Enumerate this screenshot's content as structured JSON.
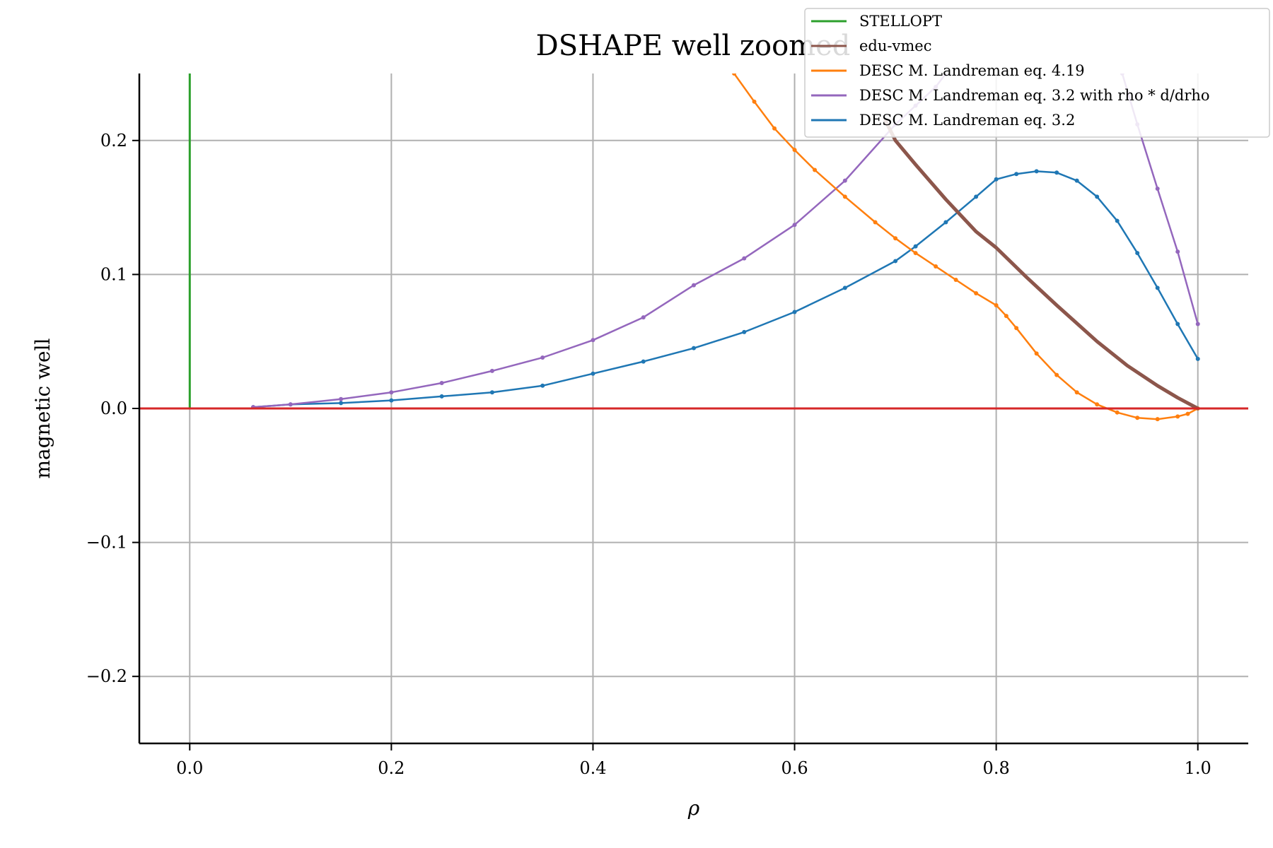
{
  "chart_data": {
    "type": "line",
    "title": "DSHAPE well zoomed",
    "xlabel": "ρ",
    "ylabel": "magnetic well",
    "xlim": [
      -0.05,
      1.05
    ],
    "ylim": [
      -0.25,
      0.25
    ],
    "xticks": [
      0.0,
      0.2,
      0.4,
      0.6,
      0.8,
      1.0
    ],
    "xtick_labels": [
      "0.0",
      "0.2",
      "0.4",
      "0.6",
      "0.8",
      "1.0"
    ],
    "yticks": [
      -0.2,
      -0.1,
      0.0,
      0.1,
      0.2
    ],
    "ytick_labels": [
      "−0.2",
      "−0.1",
      "0.0",
      "0.1",
      "0.2"
    ],
    "grid": true,
    "legend_position": "top-right",
    "reference_line": {
      "y": 0.0,
      "color": "#d62728"
    },
    "series": [
      {
        "name": "STELLOPT",
        "color": "#2ca02c",
        "marker": false,
        "width": 3,
        "x": [
          0.0,
          0.0
        ],
        "y": [
          0.0,
          0.25
        ]
      },
      {
        "name": "edu-vmec",
        "color": "#8c564b",
        "marker": false,
        "width": 5,
        "x": [
          0.69,
          0.7,
          0.72,
          0.75,
          0.78,
          0.8,
          0.83,
          0.86,
          0.9,
          0.93,
          0.96,
          0.98,
          1.0
        ],
        "y": [
          0.215,
          0.2,
          0.182,
          0.156,
          0.132,
          0.12,
          0.098,
          0.077,
          0.05,
          0.032,
          0.017,
          0.008,
          0.0
        ]
      },
      {
        "name": "DESC M. Landreman eq. 4.19",
        "color": "#ff7f0e",
        "marker": true,
        "width": 2.5,
        "x": [
          0.54,
          0.56,
          0.58,
          0.6,
          0.62,
          0.65,
          0.68,
          0.7,
          0.72,
          0.74,
          0.76,
          0.78,
          0.8,
          0.81,
          0.82,
          0.84,
          0.86,
          0.88,
          0.9,
          0.92,
          0.94,
          0.96,
          0.98,
          0.99,
          1.0
        ],
        "y": [
          0.25,
          0.229,
          0.209,
          0.193,
          0.178,
          0.158,
          0.139,
          0.127,
          0.116,
          0.106,
          0.096,
          0.086,
          0.077,
          0.069,
          0.06,
          0.041,
          0.025,
          0.012,
          0.003,
          -0.003,
          -0.007,
          -0.008,
          -0.006,
          -0.004,
          0.0
        ]
      },
      {
        "name": "DESC M. Landreman eq. 3.2 with rho * d/drho",
        "color": "#9467bd",
        "marker": true,
        "width": 2.5,
        "x": [
          0.063,
          0.1,
          0.15,
          0.2,
          0.25,
          0.3,
          0.35,
          0.4,
          0.45,
          0.5,
          0.55,
          0.6,
          0.65,
          0.7,
          0.72,
          0.74,
          0.75
        ],
        "y": [
          0.001,
          0.003,
          0.007,
          0.012,
          0.019,
          0.028,
          0.038,
          0.051,
          0.068,
          0.092,
          0.112,
          0.137,
          0.17,
          0.212,
          0.226,
          0.24,
          0.25
        ],
        "x2": [
          0.925,
          0.94,
          0.96,
          0.98,
          1.0
        ],
        "y2": [
          0.25,
          0.212,
          0.164,
          0.117,
          0.063
        ]
      },
      {
        "name": "DESC M. Landreman eq. 3.2",
        "color": "#1f77b4",
        "marker": true,
        "width": 2.5,
        "x": [
          0.063,
          0.1,
          0.15,
          0.2,
          0.25,
          0.3,
          0.35,
          0.4,
          0.45,
          0.5,
          0.55,
          0.6,
          0.65,
          0.7,
          0.72,
          0.75,
          0.78,
          0.8,
          0.82,
          0.84,
          0.86,
          0.88,
          0.9,
          0.92,
          0.94,
          0.96,
          0.98,
          1.0
        ],
        "y": [
          0.001,
          0.003,
          0.004,
          0.006,
          0.009,
          0.012,
          0.017,
          0.026,
          0.035,
          0.045,
          0.057,
          0.072,
          0.09,
          0.11,
          0.121,
          0.139,
          0.158,
          0.171,
          0.175,
          0.177,
          0.176,
          0.17,
          0.158,
          0.14,
          0.116,
          0.09,
          0.063,
          0.037
        ]
      }
    ]
  }
}
